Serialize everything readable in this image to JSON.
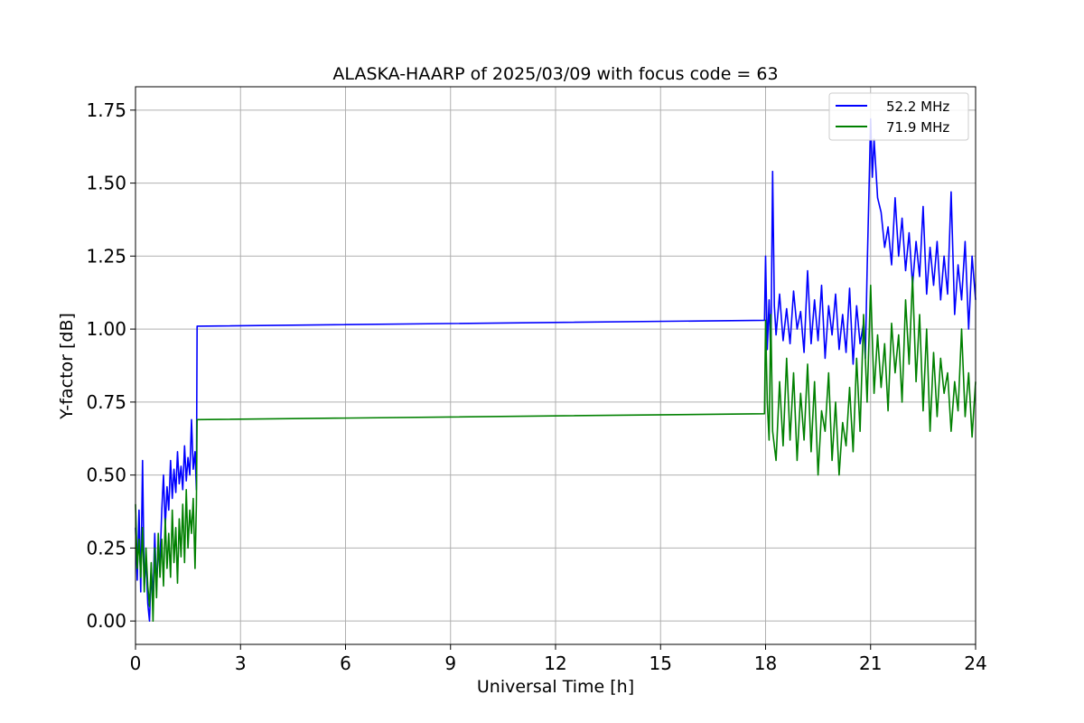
{
  "chart_data": {
    "type": "line",
    "title": "ALASKA-HAARP of 2025/03/09 with focus code = 63",
    "xlabel": "Universal Time [h]",
    "ylabel": "Y-factor [dB]",
    "xlim": [
      0,
      24
    ],
    "ylim": [
      -0.08,
      1.83
    ],
    "xticks": [
      0,
      3,
      6,
      9,
      12,
      15,
      18,
      21,
      24
    ],
    "xtick_labels": [
      "0",
      "3",
      "6",
      "9",
      "12",
      "15",
      "18",
      "21",
      "24"
    ],
    "yticks": [
      0.0,
      0.25,
      0.5,
      0.75,
      1.0,
      1.25,
      1.5,
      1.75
    ],
    "ytick_labels": [
      "0.00",
      "0.25",
      "0.50",
      "0.75",
      "1.00",
      "1.25",
      "1.50",
      "1.75"
    ],
    "grid": true,
    "legend_position": "top-right",
    "series": [
      {
        "name": "52.2 MHz",
        "color": "#0000ff",
        "x": [
          0.0,
          0.05,
          0.1,
          0.15,
          0.2,
          0.25,
          0.3,
          0.35,
          0.4,
          0.45,
          0.5,
          0.55,
          0.6,
          0.65,
          0.7,
          0.75,
          0.8,
          0.85,
          0.9,
          0.95,
          1.0,
          1.05,
          1.1,
          1.15,
          1.2,
          1.25,
          1.3,
          1.35,
          1.4,
          1.45,
          1.5,
          1.55,
          1.6,
          1.65,
          1.7,
          1.74,
          1.76,
          17.95,
          17.97,
          18.0,
          18.05,
          18.1,
          18.15,
          18.2,
          18.25,
          18.3,
          18.4,
          18.5,
          18.6,
          18.7,
          18.8,
          18.9,
          19.0,
          19.1,
          19.2,
          19.3,
          19.4,
          19.5,
          19.6,
          19.7,
          19.8,
          19.9,
          20.0,
          20.1,
          20.2,
          20.3,
          20.4,
          20.5,
          20.6,
          20.7,
          20.8,
          20.85,
          20.9,
          20.95,
          21.0,
          21.05,
          21.1,
          21.2,
          21.3,
          21.4,
          21.5,
          21.6,
          21.7,
          21.8,
          21.9,
          22.0,
          22.1,
          22.2,
          22.3,
          22.4,
          22.5,
          22.6,
          22.7,
          22.8,
          22.9,
          23.0,
          23.1,
          23.2,
          23.3,
          23.4,
          23.5,
          23.6,
          23.7,
          23.8,
          23.9,
          24.0
        ],
        "y": [
          0.32,
          0.14,
          0.38,
          0.1,
          0.55,
          0.12,
          0.22,
          0.06,
          0.0,
          0.18,
          0.08,
          0.3,
          0.12,
          0.24,
          0.2,
          0.38,
          0.5,
          0.32,
          0.46,
          0.38,
          0.55,
          0.42,
          0.52,
          0.44,
          0.58,
          0.47,
          0.53,
          0.45,
          0.6,
          0.48,
          0.56,
          0.5,
          0.69,
          0.52,
          0.58,
          0.45,
          1.01,
          1.03,
          1.03,
          1.25,
          0.93,
          1.1,
          0.9,
          1.54,
          1.08,
          0.98,
          1.12,
          0.96,
          1.07,
          0.95,
          1.13,
          1.0,
          1.06,
          0.92,
          1.2,
          0.95,
          1.1,
          0.96,
          1.15,
          0.9,
          1.08,
          0.98,
          1.12,
          0.93,
          1.05,
          0.92,
          1.14,
          0.88,
          1.08,
          0.95,
          1.02,
          0.9,
          1.2,
          1.45,
          1.72,
          1.52,
          1.65,
          1.45,
          1.4,
          1.28,
          1.35,
          1.22,
          1.45,
          1.25,
          1.38,
          1.2,
          1.33,
          1.15,
          1.3,
          1.18,
          1.42,
          1.12,
          1.28,
          1.15,
          1.3,
          1.1,
          1.25,
          1.12,
          1.47,
          1.05,
          1.22,
          1.1,
          1.3,
          1.0,
          1.25,
          1.1
        ]
      },
      {
        "name": "71.9 MHz",
        "color": "#008000",
        "x": [
          0.0,
          0.05,
          0.1,
          0.15,
          0.2,
          0.25,
          0.3,
          0.35,
          0.4,
          0.45,
          0.5,
          0.55,
          0.6,
          0.65,
          0.7,
          0.75,
          0.8,
          0.85,
          0.9,
          0.95,
          1.0,
          1.05,
          1.1,
          1.15,
          1.2,
          1.25,
          1.3,
          1.35,
          1.4,
          1.45,
          1.5,
          1.55,
          1.6,
          1.65,
          1.7,
          1.74,
          1.76,
          17.95,
          17.97,
          18.0,
          18.05,
          18.1,
          18.15,
          18.2,
          18.3,
          18.4,
          18.5,
          18.6,
          18.7,
          18.8,
          18.9,
          19.0,
          19.1,
          19.2,
          19.3,
          19.4,
          19.5,
          19.6,
          19.7,
          19.8,
          19.9,
          20.0,
          20.1,
          20.2,
          20.3,
          20.4,
          20.5,
          20.6,
          20.7,
          20.8,
          20.9,
          21.0,
          21.1,
          21.2,
          21.3,
          21.4,
          21.5,
          21.6,
          21.7,
          21.8,
          21.9,
          22.0,
          22.1,
          22.2,
          22.3,
          22.4,
          22.5,
          22.6,
          22.7,
          22.8,
          22.9,
          23.0,
          23.1,
          23.2,
          23.3,
          23.4,
          23.5,
          23.6,
          23.7,
          23.8,
          23.9,
          24.0
        ],
        "y": [
          0.4,
          0.18,
          0.28,
          0.15,
          0.32,
          0.1,
          0.25,
          0.12,
          0.05,
          0.2,
          0.0,
          0.25,
          0.08,
          0.3,
          0.15,
          0.28,
          0.12,
          0.35,
          0.18,
          0.3,
          0.15,
          0.38,
          0.2,
          0.32,
          0.13,
          0.35,
          0.22,
          0.4,
          0.2,
          0.45,
          0.25,
          0.38,
          0.3,
          0.42,
          0.18,
          0.4,
          0.69,
          0.71,
          0.71,
          1.03,
          0.75,
          0.62,
          1.05,
          0.65,
          0.55,
          0.82,
          0.6,
          0.9,
          0.62,
          0.85,
          0.55,
          0.78,
          0.62,
          0.88,
          0.58,
          0.82,
          0.5,
          0.72,
          0.65,
          0.85,
          0.55,
          0.75,
          0.5,
          0.68,
          0.6,
          0.8,
          0.58,
          0.9,
          0.65,
          1.05,
          0.75,
          1.15,
          0.78,
          0.98,
          0.8,
          0.95,
          0.72,
          1.02,
          0.85,
          0.98,
          0.75,
          1.1,
          0.88,
          1.18,
          0.82,
          1.05,
          0.72,
          1.0,
          0.65,
          0.92,
          0.7,
          0.9,
          0.78,
          0.85,
          0.65,
          0.82,
          0.72,
          1.0,
          0.7,
          0.85,
          0.63,
          0.82
        ]
      }
    ]
  }
}
